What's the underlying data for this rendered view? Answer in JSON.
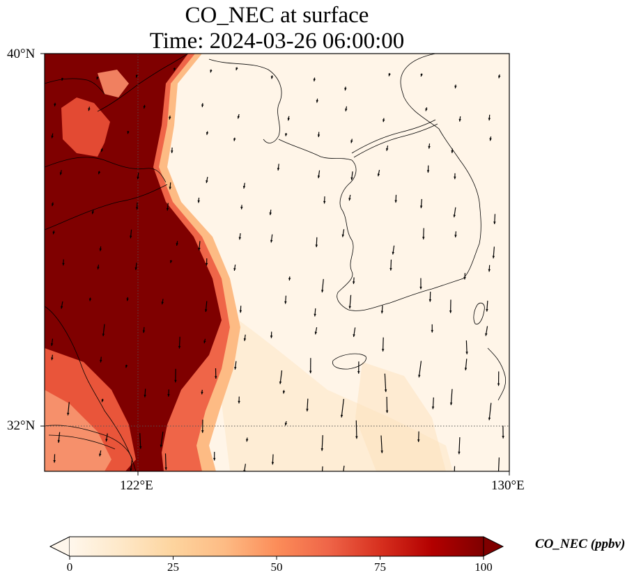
{
  "title": {
    "line1": "CO_NEC at surface",
    "line2": "Time: 2024-03-26 06:00:00"
  },
  "map": {
    "variable": "CO_NEC",
    "level": "surface",
    "extent": {
      "lon_min": 118,
      "lon_max": 130,
      "lat_min": 30.8,
      "lat_max": 40
    },
    "lat_ticks": [
      {
        "value": 40,
        "label": "40°N"
      },
      {
        "value": 32,
        "label": "32°N"
      }
    ],
    "lon_ticks": [
      {
        "value": 122,
        "label": "122°E"
      },
      {
        "value": 130,
        "label": "130°E"
      }
    ],
    "gridlines": {
      "lon": 122,
      "lat": 32,
      "style": "dotted"
    },
    "features": [
      "coastlines",
      "wind-vectors"
    ]
  },
  "colorbar": {
    "label": "CO_NEC (ppbv)",
    "colormap": "OrRd",
    "min": 0,
    "max": 100,
    "ticks": [
      {
        "value": 0,
        "label": "0"
      },
      {
        "value": 25,
        "label": "25"
      },
      {
        "value": 50,
        "label": "50"
      },
      {
        "value": 75,
        "label": "75"
      },
      {
        "value": 100,
        "label": "100"
      }
    ],
    "extend": "both",
    "stops": [
      "#fff7ec",
      "#fee8c8",
      "#fdd49e",
      "#fdbb84",
      "#fc8d59",
      "#ef6548",
      "#d7301f",
      "#b30000",
      "#7f0000"
    ]
  }
}
